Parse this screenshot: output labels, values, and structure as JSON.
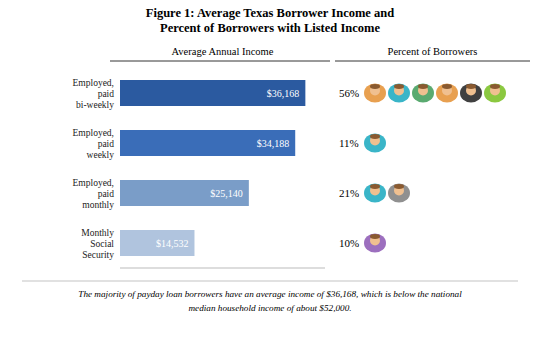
{
  "chart_data": [
    {
      "type": "bar",
      "orientation": "horizontal",
      "title": "Figure 1: Average Texas Borrower Income and\nPercent of Borrowers with Listed Income",
      "xlabel": "Average Annual Income",
      "categories": [
        "Employed,\npaid\nbi-weekly",
        "Employed,\npaid\nweekly",
        "Employed,\npaid\nmonthly",
        "Monthly\nSocial\nSecurity"
      ],
      "values": [
        36168,
        34188,
        25140,
        14532
      ],
      "value_labels": [
        "$36,168",
        "$34,188",
        "$25,140",
        "$14,532"
      ],
      "colors": [
        "#2b5aa0",
        "#3a6db8",
        "#7a9dc8",
        "#b0c4de"
      ],
      "xlim": [
        0,
        40000
      ],
      "tick_labels": "y",
      "data_labels": true,
      "grid": false,
      "annotations": [
        "The majority of payday loan borrowers have an average income of $36,168, which is below the national",
        "median household income of about $52,000."
      ]
    },
    {
      "type": "pictogram",
      "title": "Percent of Borrowers",
      "values": [
        56,
        11,
        21,
        10
      ],
      "value_labels": [
        "56%",
        "11%",
        "21%",
        "10%"
      ],
      "data_labels": true,
      "icon_colors": [
        [
          "#e8a050",
          "#3ab5c8",
          "#5aaa70",
          "#e8a050",
          "#404040",
          "#8bc840"
        ],
        [
          "#3ab5c8"
        ],
        [
          "#3ab5c8",
          "#909090"
        ],
        [
          "#9c6fbe"
        ]
      ]
    }
  ]
}
